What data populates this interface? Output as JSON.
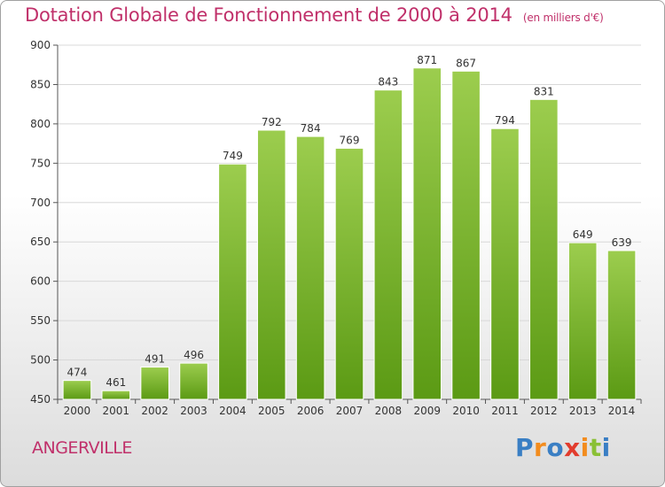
{
  "title": "Dotation Globale de Fonctionnement de 2000 à 2014",
  "subtitle": "(en milliers d'€)",
  "commune": "ANGERVILLE",
  "logo": {
    "letters": [
      "P",
      "r",
      "o",
      "x",
      "i",
      "t",
      "i"
    ],
    "colors": [
      "#3a7fc4",
      "#f28c1e",
      "#3a7fc4",
      "#e23c2d",
      "#f28c1e",
      "#8ac036",
      "#3a7fc4"
    ]
  },
  "colors": {
    "bar_top": "#9ccd4e",
    "bar_bottom": "#5b9a14",
    "bar_stroke": "#ffffff",
    "grid": "#d8d8d8",
    "axis": "#555555",
    "title": "#c0306a"
  },
  "chart_data": {
    "type": "bar",
    "categories": [
      "2000",
      "2001",
      "2002",
      "2003",
      "2004",
      "2005",
      "2006",
      "2007",
      "2008",
      "2009",
      "2010",
      "2011",
      "2012",
      "2013",
      "2014"
    ],
    "values": [
      474,
      461,
      491,
      496,
      749,
      792,
      784,
      769,
      843,
      871,
      867,
      794,
      831,
      649,
      639
    ],
    "title": "Dotation Globale de Fonctionnement de 2000 à 2014",
    "ylim": [
      450,
      900
    ],
    "yticks": [
      450,
      500,
      550,
      600,
      650,
      700,
      750,
      800,
      850,
      900
    ],
    "grid": true,
    "data_labels": true
  }
}
